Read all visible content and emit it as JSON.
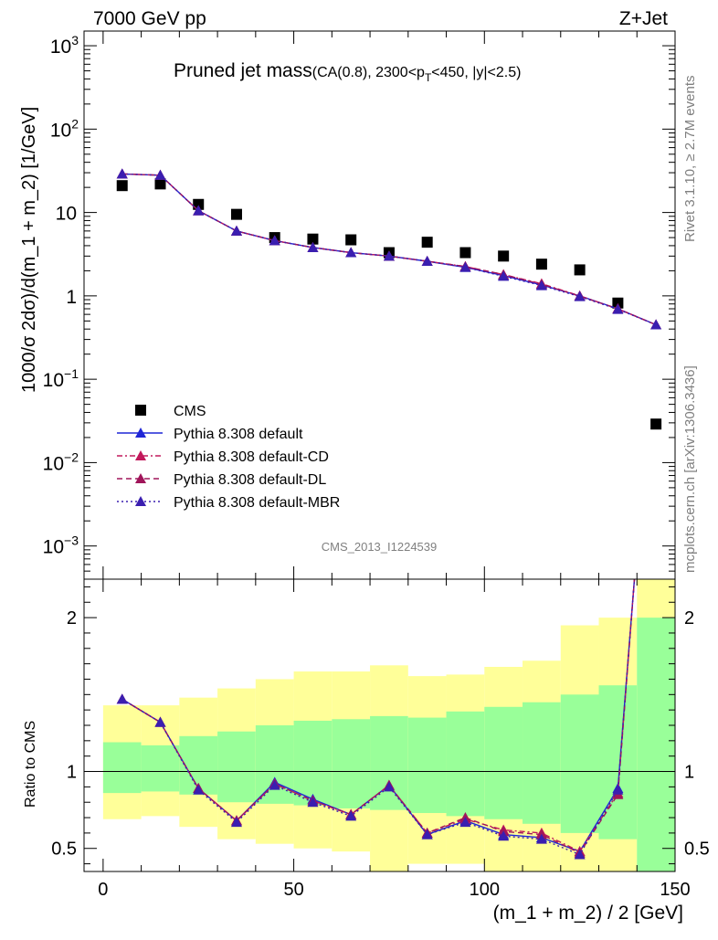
{
  "header": {
    "energy_label": "7000 GeV pp",
    "process_label": "Z+Jet",
    "plot_title": "Pruned jet mass",
    "plot_subtitle_pre": "(CA(0.8), 2300<p",
    "plot_subtitle_sub": "T",
    "plot_subtitle_post": "<450, |y|<2.5)",
    "analysis_id": "CMS_2013_I1224539",
    "side_rivet": "Rivet 3.1.10, ≥ 2.7M events",
    "side_mcplots": "mcplots.cern.ch [arXiv:1306.3436]"
  },
  "chart_data": [
    {
      "type": "scatter",
      "panel": "main",
      "ylabel": "1000/σ 2dσ)/d(m_1 + m_2) [1/GeV]",
      "yscale": "log",
      "ylim": [
        0.0004,
        1500
      ],
      "xlim": [
        -5,
        150
      ],
      "y_tick_labels": [
        {
          "base": "10",
          "exp": "3",
          "value": 1000
        },
        {
          "base": "10",
          "exp": "2",
          "value": 100
        },
        {
          "base": "10",
          "exp": "",
          "value": 10
        },
        {
          "base": "1",
          "exp": "",
          "value": 1
        },
        {
          "base": "10",
          "exp": "−1",
          "value": 0.1
        },
        {
          "base": "10",
          "exp": "−2",
          "value": 0.01
        },
        {
          "base": "10",
          "exp": "−3",
          "value": 0.001
        }
      ],
      "legend_position": "bottom-left",
      "x": [
        5,
        15,
        25,
        35,
        45,
        55,
        65,
        75,
        85,
        95,
        105,
        115,
        125,
        135,
        145
      ],
      "series": [
        {
          "name": "CMS",
          "color": "#000000",
          "style": "square",
          "values": [
            21,
            22,
            12.5,
            9.5,
            5.0,
            4.8,
            4.7,
            3.3,
            4.4,
            3.3,
            3.0,
            2.4,
            2.05,
            0.82,
            0.029
          ]
        },
        {
          "name": "Pythia 8.308 default",
          "color": "#1f26d6",
          "style": "solid",
          "values": [
            29,
            28,
            10.5,
            6.0,
            4.6,
            3.8,
            3.3,
            3.0,
            2.6,
            2.2,
            1.75,
            1.35,
            1.0,
            0.7,
            0.45
          ]
        },
        {
          "name": "Pythia 8.308 default-CD",
          "color": "#c2185b",
          "style": "dashdot",
          "values": [
            29,
            28,
            10.5,
            6.0,
            4.6,
            3.8,
            3.3,
            3.0,
            2.6,
            2.25,
            1.8,
            1.4,
            1.0,
            0.7,
            0.45
          ]
        },
        {
          "name": "Pythia 8.308 default-DL",
          "color": "#a0155a",
          "style": "dash",
          "values": [
            29,
            28,
            10.5,
            6.0,
            4.6,
            3.8,
            3.3,
            3.0,
            2.6,
            2.25,
            1.8,
            1.38,
            0.99,
            0.7,
            0.45
          ]
        },
        {
          "name": "Pythia 8.308 default-MBR",
          "color": "#3a1eb0",
          "style": "dotted",
          "values": [
            29,
            28,
            10.5,
            6.0,
            4.6,
            3.8,
            3.3,
            3.0,
            2.6,
            2.2,
            1.72,
            1.33,
            0.98,
            0.69,
            0.45
          ]
        }
      ]
    },
    {
      "type": "line",
      "panel": "ratio",
      "ylabel": "Ratio to CMS",
      "xlabel": "(m_1 + m_2) / 2 [GeV]",
      "ylim": [
        0.35,
        2.25
      ],
      "xlim": [
        -5,
        150
      ],
      "y_ticks": [
        0.5,
        1,
        2
      ],
      "y_tick_labels": [
        "0.5",
        "1",
        "2"
      ],
      "x_ticks": [
        0,
        50,
        100,
        150
      ],
      "x_tick_labels": [
        "0",
        "50",
        "100",
        "150"
      ],
      "bins": [
        [
          0,
          10
        ],
        [
          10,
          20
        ],
        [
          20,
          30
        ],
        [
          30,
          40
        ],
        [
          40,
          50
        ],
        [
          50,
          60
        ],
        [
          60,
          70
        ],
        [
          70,
          80
        ],
        [
          80,
          90
        ],
        [
          90,
          100
        ],
        [
          100,
          110
        ],
        [
          110,
          120
        ],
        [
          120,
          130
        ],
        [
          130,
          140
        ],
        [
          140,
          150
        ]
      ],
      "band_inner_color": "#99ff99",
      "band_outer_color": "#ffff99",
      "band_inner": [
        [
          0.86,
          1.19
        ],
        [
          0.87,
          1.17
        ],
        [
          0.85,
          1.23
        ],
        [
          0.8,
          1.26
        ],
        [
          0.79,
          1.3
        ],
        [
          0.78,
          1.33
        ],
        [
          0.76,
          1.34
        ],
        [
          0.75,
          1.36
        ],
        [
          0.73,
          1.35
        ],
        [
          0.71,
          1.39
        ],
        [
          0.69,
          1.42
        ],
        [
          0.66,
          1.45
        ],
        [
          0.6,
          1.5
        ],
        [
          0.56,
          1.56
        ],
        [
          0.3,
          2.0
        ]
      ],
      "band_outer": [
        [
          0.69,
          1.43
        ],
        [
          0.71,
          1.43
        ],
        [
          0.64,
          1.48
        ],
        [
          0.56,
          1.54
        ],
        [
          0.53,
          1.6
        ],
        [
          0.5,
          1.65
        ],
        [
          0.48,
          1.65
        ],
        [
          0.3,
          1.69
        ],
        [
          0.4,
          1.62
        ],
        [
          0.4,
          1.63
        ],
        [
          0.35,
          1.68
        ],
        [
          0.3,
          1.72
        ],
        [
          0.3,
          1.95
        ],
        [
          0.3,
          2.0
        ],
        [
          0.3,
          2.3
        ]
      ],
      "x": [
        5,
        15,
        25,
        35,
        45,
        55,
        65,
        75,
        85,
        95,
        105,
        115,
        125,
        135,
        139.5
      ],
      "series": [
        {
          "name": "Pythia 8.308 default",
          "color": "#1f26d6",
          "style": "solid",
          "values": [
            1.47,
            1.32,
            0.89,
            0.68,
            0.93,
            0.82,
            0.72,
            0.91,
            0.59,
            0.68,
            0.59,
            0.57,
            0.48,
            0.89,
            2.3
          ]
        },
        {
          "name": "Pythia 8.308 default-CD",
          "color": "#c2185b",
          "style": "dashdot",
          "values": [
            1.47,
            1.32,
            0.89,
            0.68,
            0.92,
            0.81,
            0.72,
            0.91,
            0.6,
            0.69,
            0.62,
            0.6,
            0.48,
            0.86,
            2.3
          ]
        },
        {
          "name": "Pythia 8.308 default-DL",
          "color": "#a0155a",
          "style": "dash",
          "values": [
            1.47,
            1.32,
            0.89,
            0.68,
            0.92,
            0.81,
            0.72,
            0.91,
            0.6,
            0.7,
            0.61,
            0.59,
            0.47,
            0.85,
            2.3
          ]
        },
        {
          "name": "Pythia 8.308 default-MBR",
          "color": "#3a1eb0",
          "style": "dotted",
          "values": [
            1.47,
            1.32,
            0.88,
            0.67,
            0.91,
            0.8,
            0.71,
            0.9,
            0.59,
            0.67,
            0.58,
            0.56,
            0.46,
            0.88,
            2.3
          ]
        }
      ]
    }
  ]
}
